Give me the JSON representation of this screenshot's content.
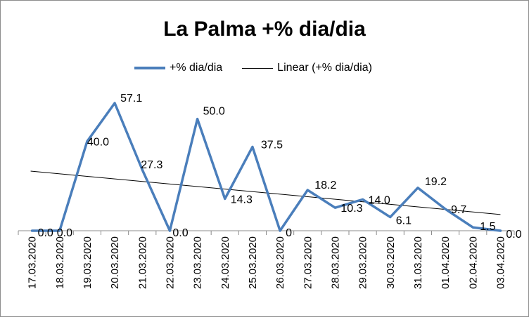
{
  "chart_data": {
    "type": "line",
    "title": "La Palma +% dia/dia",
    "xlabel": "",
    "ylabel": "",
    "categories": [
      "17.03.2020",
      "18.03.2020",
      "19.03.2020",
      "20.03.2020",
      "21.03.2020",
      "22.03.2020",
      "23.03.2020",
      "24.03.2020",
      "25.03.2020",
      "26.03.2020",
      "27.03.2020",
      "28.03.2020",
      "29.03.2020",
      "30.03.2020",
      "31.03.2020",
      "01.04.2020",
      "02.04.2020",
      "03.04.2020"
    ],
    "series": [
      {
        "name": "+% dia/dia",
        "color": "#4a7ebb",
        "values": [
          0.0,
          0.0,
          40.0,
          57.1,
          27.3,
          0.0,
          50.0,
          14.3,
          37.5,
          0,
          18.2,
          10.3,
          14.0,
          6.1,
          19.2,
          9.7,
          1.5,
          0.0
        ],
        "labels": [
          "0.0",
          "0.0",
          "40.0",
          "57.1",
          "27.3",
          "0.0",
          "50.0",
          "14.3",
          "37.5",
          "0",
          "18.2",
          "10.3",
          "14.0",
          "6.1",
          "19.2",
          "9.7",
          "1.5",
          "0.0"
        ]
      }
    ],
    "trendline": {
      "name": "Linear (+% dia/dia)",
      "type": "linear",
      "color": "#000000"
    },
    "ylim": [
      0,
      65
    ],
    "grid": false,
    "legend_position": "top"
  }
}
